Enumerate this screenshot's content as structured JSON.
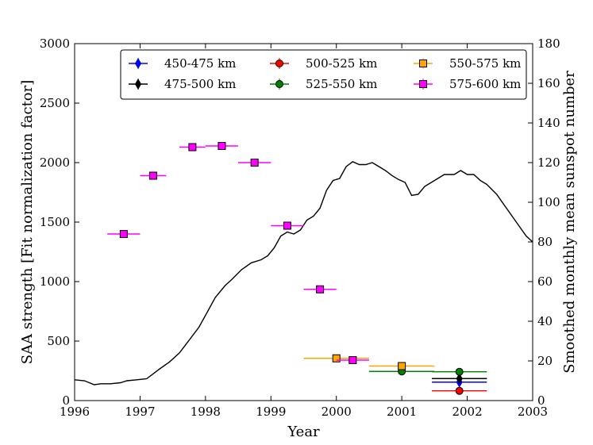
{
  "chart_data": {
    "type": "scatter",
    "xlabel": "Year",
    "ylabel": "SAA strength [Fit normalization factor]",
    "y2label": "Smoothed monthly mean sunspot number",
    "xlim": [
      1996,
      2003
    ],
    "ylim": [
      0,
      3000
    ],
    "y2lim": [
      0,
      180
    ],
    "x_ticks": [
      "1996",
      "1997",
      "1998",
      "1999",
      "2000",
      "2001",
      "2002",
      "2003"
    ],
    "y_ticks": [
      "0",
      "500",
      "1000",
      "1500",
      "2000",
      "2500",
      "3000"
    ],
    "y2_ticks": [
      "0",
      "20",
      "40",
      "60",
      "80",
      "100",
      "120",
      "140",
      "160",
      "180"
    ],
    "legend_position": "top",
    "series": [
      {
        "name": "450-475 km",
        "color": "#0000ff",
        "marker": "diamond",
        "points": [
          {
            "x": 2001.88,
            "y": 155,
            "xerr": 0.42
          }
        ]
      },
      {
        "name": "475-500 km",
        "color": "#000000",
        "marker": "diamond",
        "points": [
          {
            "x": 2001.88,
            "y": 185,
            "xerr": 0.42
          }
        ]
      },
      {
        "name": "500-525 km",
        "color": "#ff0000",
        "marker": "circle",
        "points": [
          {
            "x": 2001.88,
            "y": 82,
            "xerr": 0.42
          }
        ]
      },
      {
        "name": "525-550 km",
        "color": "#008000",
        "marker": "circle",
        "points": [
          {
            "x": 2001.0,
            "y": 245,
            "xerr": 0.5
          },
          {
            "x": 2001.88,
            "y": 242,
            "xerr": 0.42
          }
        ]
      },
      {
        "name": "550-575 km",
        "color": "#ffa500",
        "marker": "square",
        "points": [
          {
            "x": 2000.0,
            "y": 355,
            "xerr": 0.5
          },
          {
            "x": 2001.0,
            "y": 290,
            "xerr": 0.5
          }
        ]
      },
      {
        "name": "575-600 km",
        "color": "#ff00ff",
        "marker": "square",
        "points": [
          {
            "x": 1996.75,
            "y": 1400,
            "xerr": 0.25
          },
          {
            "x": 1997.2,
            "y": 1890,
            "xerr": 0.2
          },
          {
            "x": 1997.8,
            "y": 2130,
            "xerr": 0.2
          },
          {
            "x": 1998.25,
            "y": 2140,
            "xerr": 0.25
          },
          {
            "x": 1998.75,
            "y": 2000,
            "xerr": 0.25
          },
          {
            "x": 1999.25,
            "y": 1470,
            "xerr": 0.25
          },
          {
            "x": 1999.75,
            "y": 935,
            "xerr": 0.25
          },
          {
            "x": 2000.25,
            "y": 340,
            "xerr": 0.25
          }
        ]
      }
    ],
    "sunspot_curve": {
      "name": "Smoothed monthly mean sunspot number",
      "color": "#000000",
      "axis": "right",
      "x": [
        1996.0,
        1996.15,
        1996.3,
        1996.4,
        1996.55,
        1996.7,
        1996.8,
        1996.95,
        1997.1,
        1997.2,
        1997.3,
        1997.45,
        1997.6,
        1997.75,
        1997.9,
        1998.0,
        1998.15,
        1998.3,
        1998.4,
        1998.55,
        1998.7,
        1998.85,
        1998.95,
        1999.05,
        1999.15,
        1999.25,
        1999.35,
        1999.45,
        1999.55,
        1999.65,
        1999.75,
        1999.85,
        1999.95,
        2000.05,
        2000.15,
        2000.25,
        2000.35,
        2000.45,
        2000.55,
        2000.65,
        2000.75,
        2000.85,
        2000.95,
        2001.05,
        2001.15,
        2001.25,
        2001.35,
        2001.5,
        2001.65,
        2001.8,
        2001.9,
        2002.0,
        2002.1,
        2002.2,
        2002.3,
        2002.45,
        2002.6,
        2002.75,
        2002.9,
        2003.0
      ],
      "y": [
        10.5,
        10,
        8,
        8.5,
        8.5,
        9,
        10,
        10.5,
        11,
        13.5,
        16,
        19.5,
        24,
        30.5,
        37,
        43,
        52,
        58,
        61,
        66,
        69.5,
        71,
        73,
        77,
        83,
        85,
        84,
        86,
        91,
        93,
        97,
        106,
        111,
        112,
        118,
        120.5,
        119,
        119,
        120,
        118,
        116,
        113.5,
        111.5,
        110,
        103.5,
        104,
        108,
        111,
        114,
        114,
        116,
        114,
        114,
        111,
        109,
        104,
        97,
        90,
        83,
        80
      ]
    }
  }
}
